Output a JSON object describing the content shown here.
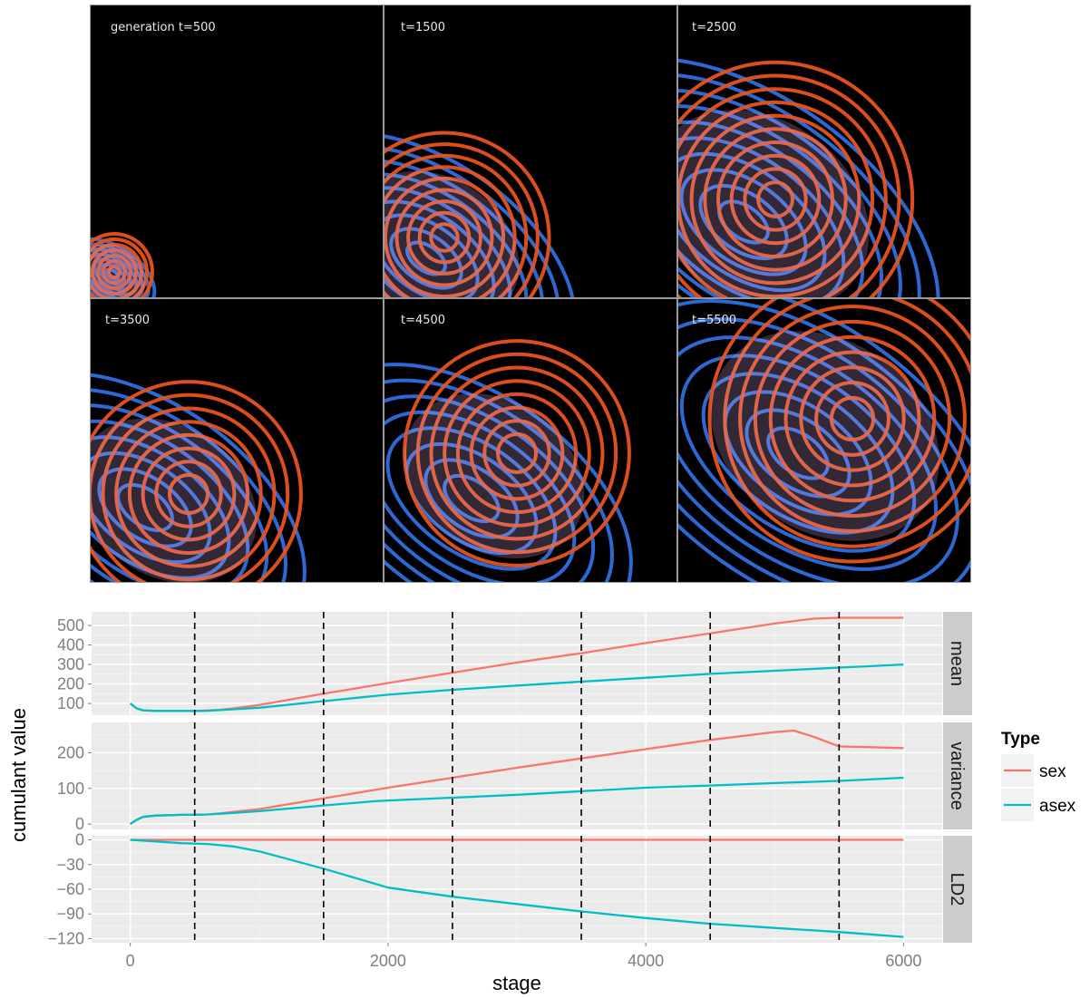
{
  "snapshot_panels": [
    {
      "label": "generation t=500",
      "t": 500
    },
    {
      "label": "t=1500",
      "t": 1500
    },
    {
      "label": "t=2500",
      "t": 2500
    },
    {
      "label": "t=3500",
      "t": 3500
    },
    {
      "label": "t=4500",
      "t": 4500
    },
    {
      "label": "t=5500",
      "t": 5500
    }
  ],
  "colors": {
    "sex": "#f8766d",
    "asex": "#00bfc4",
    "panel_bg": "#ebebeb",
    "strip_bg": "#cccccc",
    "contour_sex": "#e8531e",
    "contour_asex": "#2f6fe0",
    "overlap": "#e8b8f0"
  },
  "chart_data": {
    "type": "line",
    "xlabel": "stage",
    "ylabel": "cumulant value",
    "xlim": [
      -300,
      6300
    ],
    "x_ticks": [
      0,
      2000,
      4000,
      6000
    ],
    "x_tick_labels": [
      "0",
      "2000",
      "4000",
      "6000"
    ],
    "vlines": [
      500,
      1500,
      2500,
      3500,
      4500,
      5500
    ],
    "legend": {
      "title": "Type",
      "entries": [
        "sex",
        "asex"
      ],
      "position": "right"
    },
    "facets": [
      {
        "name": "mean",
        "ylim": [
          40,
          570
        ],
        "y_ticks": [
          100,
          200,
          300,
          400,
          500
        ],
        "y_tick_labels": [
          "100",
          "200",
          "300",
          "400",
          "500"
        ],
        "series": [
          {
            "name": "sex",
            "x": [
              0,
              50,
              100,
              200,
              300,
              400,
              500,
              600,
              700,
              800,
              1000,
              1500,
              2000,
              2500,
              3000,
              3500,
              4000,
              4500,
              5000,
              5300,
              5500,
              6000
            ],
            "y": [
              100,
              75,
              65,
              62,
              62,
              62,
              62,
              64,
              68,
              75,
              92,
              150,
              205,
              258,
              310,
              358,
              410,
              460,
              510,
              535,
              540,
              540
            ]
          },
          {
            "name": "asex",
            "x": [
              0,
              50,
              100,
              200,
              300,
              400,
              500,
              600,
              700,
              800,
              1000,
              1500,
              2000,
              2500,
              3000,
              3500,
              4000,
              4500,
              5000,
              5500,
              6000
            ],
            "y": [
              100,
              75,
              65,
              62,
              62,
              62,
              62,
              63,
              66,
              70,
              78,
              112,
              145,
              170,
              192,
              212,
              232,
              252,
              268,
              284,
              300
            ]
          }
        ]
      },
      {
        "name": "variance",
        "ylim": [
          -15,
          285
        ],
        "y_ticks": [
          0,
          100,
          200
        ],
        "y_tick_labels": [
          "0",
          "100",
          "200"
        ],
        "series": [
          {
            "name": "sex",
            "x": [
              0,
              50,
              100,
              200,
              300,
              400,
              500,
              600,
              700,
              800,
              1000,
              1500,
              2000,
              2500,
              3000,
              3500,
              4000,
              4500,
              5000,
              5150,
              5300,
              5500,
              6000
            ],
            "y": [
              0,
              12,
              20,
              24,
              25,
              26,
              26,
              27,
              30,
              34,
              42,
              72,
              102,
              130,
              158,
              184,
              210,
              236,
              258,
              262,
              245,
              218,
              213
            ]
          },
          {
            "name": "asex",
            "x": [
              0,
              50,
              100,
              200,
              300,
              400,
              500,
              600,
              700,
              800,
              1000,
              1500,
              1900,
              2000,
              2500,
              3000,
              3500,
              4000,
              4500,
              5000,
              5500,
              6000
            ],
            "y": [
              0,
              12,
              20,
              24,
              25,
              26,
              26,
              27,
              29,
              31,
              36,
              52,
              64,
              66,
              74,
              82,
              92,
              102,
              108,
              115,
              121,
              130
            ]
          }
        ]
      },
      {
        "name": "LD2",
        "ylim": [
          -125,
          5
        ],
        "y_ticks": [
          0,
          -30,
          -60,
          -90,
          -120
        ],
        "y_tick_labels": [
          "0",
          "−30",
          "−60",
          "−90",
          "−120"
        ],
        "series": [
          {
            "name": "sex",
            "x": [
              0,
              6000
            ],
            "y": [
              0,
              0
            ]
          },
          {
            "name": "asex",
            "x": [
              0,
              200,
              400,
              600,
              800,
              1000,
              1500,
              2000,
              2500,
              3000,
              3500,
              4000,
              4500,
              5000,
              5500,
              6000
            ],
            "y": [
              0,
              -2,
              -4,
              -5,
              -8,
              -14,
              -35,
              -58,
              -69,
              -78,
              -87,
              -95,
              -102,
              -107,
              -112,
              -118
            ]
          }
        ]
      }
    ]
  }
}
